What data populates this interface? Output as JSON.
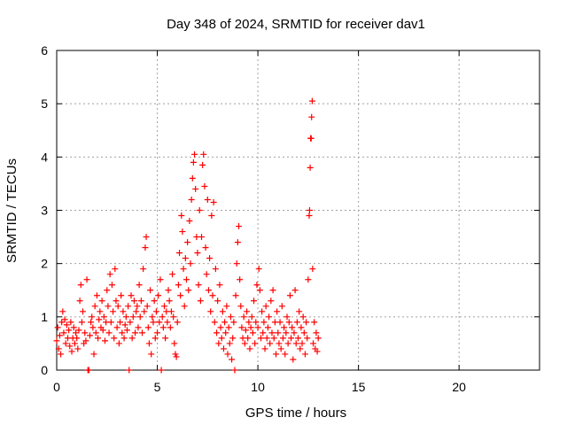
{
  "chart_data": {
    "type": "scatter",
    "title": "Day 348 of 2024, SRMTID for receiver dav1",
    "xlabel": "GPS time / hours",
    "ylabel": "SRMTID / TECUs",
    "xlim": [
      0,
      24
    ],
    "ylim": [
      0,
      6
    ],
    "xticks": [
      0,
      5,
      10,
      15,
      20
    ],
    "yticks": [
      0,
      1,
      2,
      3,
      4,
      5,
      6
    ],
    "grid": true,
    "marker": "+",
    "series": [
      {
        "name": "",
        "color": "#ff0000",
        "points": [
          [
            0.0,
            0.55
          ],
          [
            0.05,
            0.8
          ],
          [
            0.1,
            0.4
          ],
          [
            0.15,
            0.65
          ],
          [
            0.2,
            0.3
          ],
          [
            0.25,
            0.9
          ],
          [
            0.3,
            1.1
          ],
          [
            0.35,
            0.7
          ],
          [
            0.4,
            0.95
          ],
          [
            0.45,
            0.5
          ],
          [
            0.5,
            0.85
          ],
          [
            0.55,
            0.6
          ],
          [
            0.6,
            0.75
          ],
          [
            0.65,
            0.45
          ],
          [
            0.7,
            0.9
          ],
          [
            0.75,
            0.35
          ],
          [
            0.8,
            0.6
          ],
          [
            0.85,
            0.8
          ],
          [
            0.9,
            0.5
          ],
          [
            0.95,
            0.7
          ],
          [
            1.0,
            0.6
          ],
          [
            1.05,
            0.4
          ],
          [
            1.1,
            0.75
          ],
          [
            1.15,
            1.3
          ],
          [
            1.2,
            1.6
          ],
          [
            1.25,
            0.9
          ],
          [
            1.3,
            1.1
          ],
          [
            1.35,
            0.5
          ],
          [
            1.4,
            0.7
          ],
          [
            1.45,
            0.55
          ],
          [
            1.5,
            1.7
          ],
          [
            1.55,
            0.0
          ],
          [
            1.6,
            0.0
          ],
          [
            1.65,
            0.65
          ],
          [
            1.7,
            0.9
          ],
          [
            1.75,
            1.0
          ],
          [
            1.8,
            0.8
          ],
          [
            1.85,
            0.3
          ],
          [
            1.9,
            1.2
          ],
          [
            1.95,
            0.7
          ],
          [
            2.0,
            1.4
          ],
          [
            2.05,
            0.6
          ],
          [
            2.1,
            0.95
          ],
          [
            2.15,
            1.1
          ],
          [
            2.2,
            0.8
          ],
          [
            2.25,
            1.3
          ],
          [
            2.3,
            0.75
          ],
          [
            2.35,
            1.0
          ],
          [
            2.4,
            0.55
          ],
          [
            2.45,
            0.9
          ],
          [
            2.5,
            1.5
          ],
          [
            2.55,
            1.2
          ],
          [
            2.6,
            0.7
          ],
          [
            2.65,
            1.8
          ],
          [
            2.7,
            0.9
          ],
          [
            2.75,
            1.6
          ],
          [
            2.8,
            1.1
          ],
          [
            2.85,
            0.6
          ],
          [
            2.9,
            1.9
          ],
          [
            2.95,
            1.3
          ],
          [
            3.0,
            0.8
          ],
          [
            3.05,
            1.2
          ],
          [
            3.1,
            0.5
          ],
          [
            3.15,
            0.9
          ],
          [
            3.2,
            1.4
          ],
          [
            3.25,
            0.7
          ],
          [
            3.3,
            1.1
          ],
          [
            3.35,
            0.6
          ],
          [
            3.4,
            0.85
          ],
          [
            3.45,
            1.0
          ],
          [
            3.5,
            0.75
          ],
          [
            3.55,
            1.2
          ],
          [
            3.6,
            0.0
          ],
          [
            3.65,
            0.9
          ],
          [
            3.7,
            1.4
          ],
          [
            3.75,
            0.6
          ],
          [
            3.8,
            1.0
          ],
          [
            3.85,
            1.3
          ],
          [
            3.9,
            0.7
          ],
          [
            3.95,
            1.1
          ],
          [
            4.0,
            1.2
          ],
          [
            4.05,
            0.8
          ],
          [
            4.1,
            1.6
          ],
          [
            4.15,
            1.0
          ],
          [
            4.2,
            1.3
          ],
          [
            4.25,
            0.7
          ],
          [
            4.3,
            1.9
          ],
          [
            4.35,
            1.1
          ],
          [
            4.4,
            2.3
          ],
          [
            4.45,
            2.5
          ],
          [
            4.5,
            1.2
          ],
          [
            4.55,
            0.8
          ],
          [
            4.6,
            0.5
          ],
          [
            4.65,
            1.5
          ],
          [
            4.7,
            0.3
          ],
          [
            4.75,
            1.0
          ],
          [
            4.8,
            0.9
          ],
          [
            4.85,
            1.3
          ],
          [
            4.9,
            0.6
          ],
          [
            4.95,
            1.1
          ],
          [
            5.0,
            0.7
          ],
          [
            5.05,
            1.4
          ],
          [
            5.1,
            0.9
          ],
          [
            5.15,
            1.7
          ],
          [
            5.2,
            0.0
          ],
          [
            5.25,
            1.0
          ],
          [
            5.3,
            0.8
          ],
          [
            5.35,
            1.2
          ],
          [
            5.4,
            0.6
          ],
          [
            5.45,
            1.1
          ],
          [
            5.5,
            0.9
          ],
          [
            5.55,
            1.5
          ],
          [
            5.6,
            1.3
          ],
          [
            5.65,
            0.8
          ],
          [
            5.7,
            1.1
          ],
          [
            5.75,
            1.8
          ],
          [
            5.8,
            1.0
          ],
          [
            5.85,
            0.5
          ],
          [
            5.9,
            0.3
          ],
          [
            5.95,
            0.25
          ],
          [
            6.0,
            0.9
          ],
          [
            6.05,
            1.6
          ],
          [
            6.1,
            2.2
          ],
          [
            6.15,
            1.4
          ],
          [
            6.2,
            2.9
          ],
          [
            6.25,
            2.6
          ],
          [
            6.3,
            1.9
          ],
          [
            6.35,
            1.2
          ],
          [
            6.4,
            2.1
          ],
          [
            6.45,
            1.7
          ],
          [
            6.5,
            2.4
          ],
          [
            6.55,
            1.5
          ],
          [
            6.6,
            2.8
          ],
          [
            6.65,
            2.0
          ],
          [
            6.7,
            3.2
          ],
          [
            6.75,
            3.6
          ],
          [
            6.8,
            3.9
          ],
          [
            6.85,
            4.05
          ],
          [
            6.9,
            3.4
          ],
          [
            6.95,
            2.5
          ],
          [
            7.0,
            2.2
          ],
          [
            7.05,
            1.6
          ],
          [
            7.1,
            3.0
          ],
          [
            7.15,
            1.3
          ],
          [
            7.2,
            2.5
          ],
          [
            7.25,
            3.85
          ],
          [
            7.3,
            4.05
          ],
          [
            7.35,
            3.45
          ],
          [
            7.4,
            2.3
          ],
          [
            7.45,
            1.8
          ],
          [
            7.5,
            3.2
          ],
          [
            7.55,
            1.5
          ],
          [
            7.6,
            2.1
          ],
          [
            7.65,
            1.1
          ],
          [
            7.7,
            2.9
          ],
          [
            7.75,
            1.4
          ],
          [
            7.8,
            3.15
          ],
          [
            7.85,
            0.9
          ],
          [
            7.9,
            1.9
          ],
          [
            7.95,
            0.7
          ],
          [
            8.0,
            1.3
          ],
          [
            8.05,
            0.5
          ],
          [
            8.1,
            1.6
          ],
          [
            8.15,
            0.8
          ],
          [
            8.2,
            0.6
          ],
          [
            8.25,
            1.1
          ],
          [
            8.3,
            0.4
          ],
          [
            8.35,
            0.9
          ],
          [
            8.4,
            0.7
          ],
          [
            8.45,
            1.2
          ],
          [
            8.5,
            0.3
          ],
          [
            8.55,
            0.8
          ],
          [
            8.6,
            0.5
          ],
          [
            8.65,
            1.0
          ],
          [
            8.7,
            0.2
          ],
          [
            8.75,
            0.6
          ],
          [
            8.8,
            0.9
          ],
          [
            8.85,
            0.0
          ],
          [
            8.9,
            1.4
          ],
          [
            8.95,
            2.0
          ],
          [
            9.0,
            2.4
          ],
          [
            9.05,
            2.7
          ],
          [
            9.1,
            1.7
          ],
          [
            9.15,
            1.2
          ],
          [
            9.2,
            0.8
          ],
          [
            9.25,
            0.6
          ],
          [
            9.3,
            1.0
          ],
          [
            9.35,
            0.5
          ],
          [
            9.4,
            0.75
          ],
          [
            9.45,
            1.1
          ],
          [
            9.5,
            0.6
          ],
          [
            9.55,
            0.9
          ],
          [
            9.6,
            0.4
          ],
          [
            9.65,
            0.8
          ],
          [
            9.7,
            1.0
          ],
          [
            9.75,
            0.7
          ],
          [
            9.8,
            1.3
          ],
          [
            9.85,
            0.5
          ],
          [
            9.9,
            0.9
          ],
          [
            9.95,
            1.6
          ],
          [
            10.0,
            0.8
          ],
          [
            10.05,
            1.9
          ],
          [
            10.1,
            1.5
          ],
          [
            10.15,
            0.6
          ],
          [
            10.2,
            1.1
          ],
          [
            10.25,
            0.7
          ],
          [
            10.3,
            0.9
          ],
          [
            10.35,
            0.4
          ],
          [
            10.4,
            1.2
          ],
          [
            10.45,
            0.6
          ],
          [
            10.5,
            0.8
          ],
          [
            10.55,
            1.0
          ],
          [
            10.6,
            0.5
          ],
          [
            10.65,
            1.3
          ],
          [
            10.7,
            0.7
          ],
          [
            10.75,
            1.5
          ],
          [
            10.8,
            0.6
          ],
          [
            10.85,
            0.9
          ],
          [
            10.9,
            0.3
          ],
          [
            10.95,
            1.1
          ],
          [
            11.0,
            0.7
          ],
          [
            11.05,
            0.5
          ],
          [
            11.1,
            0.9
          ],
          [
            11.15,
            0.4
          ],
          [
            11.2,
            1.2
          ],
          [
            11.25,
            0.6
          ],
          [
            11.3,
            0.8
          ],
          [
            11.35,
            0.3
          ],
          [
            11.4,
            0.7
          ],
          [
            11.45,
            1.0
          ],
          [
            11.5,
            0.5
          ],
          [
            11.55,
            0.9
          ],
          [
            11.6,
            1.4
          ],
          [
            11.65,
            0.6
          ],
          [
            11.7,
            0.8
          ],
          [
            11.75,
            0.2
          ],
          [
            11.8,
            0.7
          ],
          [
            11.85,
            1.5
          ],
          [
            11.9,
            0.5
          ],
          [
            11.95,
            0.9
          ],
          [
            12.0,
            0.6
          ],
          [
            12.05,
            1.1
          ],
          [
            12.1,
            0.4
          ],
          [
            12.15,
            0.8
          ],
          [
            12.2,
            0.5
          ],
          [
            12.25,
            1.0
          ],
          [
            12.3,
            0.7
          ],
          [
            12.35,
            0.3
          ],
          [
            12.4,
            0.9
          ],
          [
            12.45,
            0.6
          ],
          [
            12.5,
            1.7
          ],
          [
            12.55,
            2.9
          ],
          [
            12.57,
            3.0
          ],
          [
            12.6,
            3.8
          ],
          [
            12.62,
            4.35
          ],
          [
            12.65,
            4.35
          ],
          [
            12.67,
            4.75
          ],
          [
            12.7,
            5.05
          ],
          [
            12.72,
            1.9
          ],
          [
            12.75,
            0.5
          ],
          [
            12.8,
            0.9
          ],
          [
            12.85,
            0.4
          ],
          [
            12.9,
            0.7
          ],
          [
            12.95,
            0.35
          ],
          [
            13.0,
            0.6
          ]
        ]
      }
    ]
  }
}
